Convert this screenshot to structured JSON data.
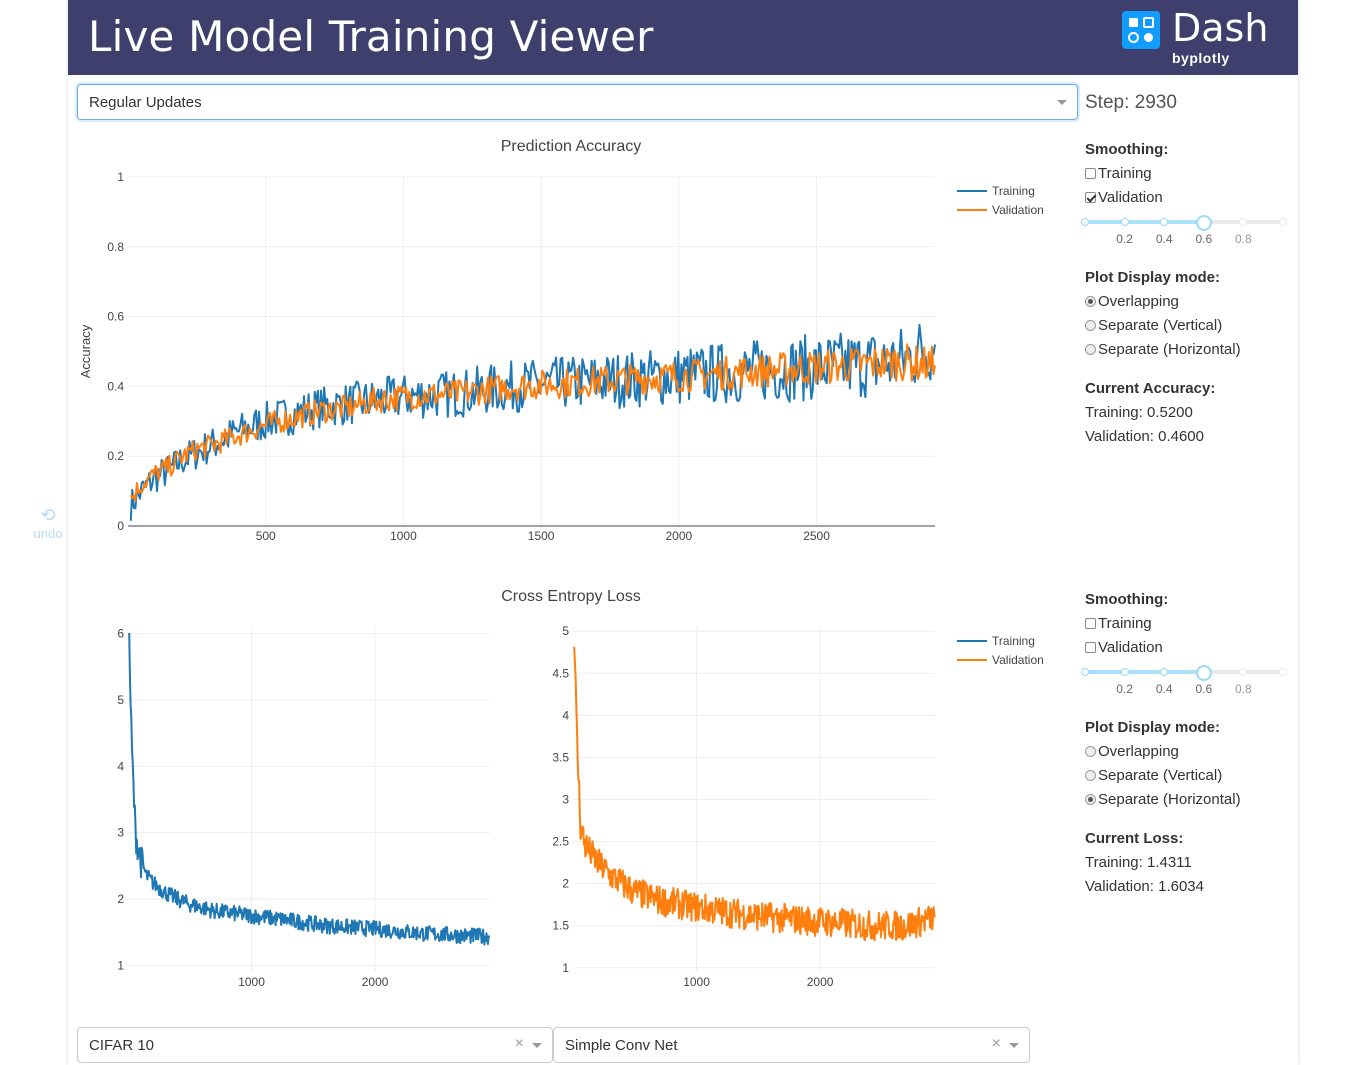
{
  "app": {
    "title": "Live Model Training Viewer",
    "logo_word": "Dash",
    "logo_sub": "byplotly"
  },
  "update_mode": {
    "value": "Regular Updates"
  },
  "step": {
    "text": "Step: 2930"
  },
  "undo": {
    "label": "undo"
  },
  "accuracy_panel": {
    "smoothing_label": "Smoothing:",
    "smooth_training": {
      "label": "Training",
      "checked": false
    },
    "smooth_validation": {
      "label": "Validation",
      "checked": true
    },
    "slider": {
      "value": 0.6,
      "marks": [
        "0.2",
        "0.4",
        "0.6",
        "0.8"
      ]
    },
    "display_label": "Plot Display mode:",
    "modes": [
      {
        "label": "Overlapping",
        "selected": true
      },
      {
        "label": "Separate (Vertical)",
        "selected": false
      },
      {
        "label": "Separate (Horizontal)",
        "selected": false
      }
    ],
    "current_label": "Current Accuracy:",
    "current_training": "Training: 0.5200",
    "current_validation": "Validation: 0.4600"
  },
  "loss_panel": {
    "smoothing_label": "Smoothing:",
    "smooth_training": {
      "label": "Training",
      "checked": false
    },
    "smooth_validation": {
      "label": "Validation",
      "checked": false
    },
    "slider": {
      "value": 0.6,
      "marks": [
        "0.2",
        "0.4",
        "0.6",
        "0.8"
      ]
    },
    "display_label": "Plot Display mode:",
    "modes": [
      {
        "label": "Overlapping",
        "selected": false
      },
      {
        "label": "Separate (Vertical)",
        "selected": false
      },
      {
        "label": "Separate (Horizontal)",
        "selected": true
      }
    ],
    "current_label": "Current Loss:",
    "current_training": "Training: 1.4311",
    "current_validation": "Validation: 1.6034"
  },
  "dataset_select": {
    "value": "CIFAR 10"
  },
  "model_select": {
    "value": "Simple Conv Net"
  },
  "colors": {
    "training": "#1f77b4",
    "validation": "#ff7f0e",
    "banner": "#3f3f6e"
  },
  "chart_data": [
    {
      "type": "line",
      "title": "Prediction Accuracy",
      "ylabel": "Accuracy",
      "xlabel": "",
      "xlim": [
        0,
        2930
      ],
      "ylim": [
        0,
        1
      ],
      "xticks": [
        500,
        1000,
        1500,
        2000,
        2500
      ],
      "yticks": [
        0,
        0.2,
        0.4,
        0.6,
        0.8,
        1
      ],
      "ytick_labels": [
        "0",
        "0.2",
        "0.4",
        "0.6",
        "0.8",
        "1"
      ],
      "legend": "top-right",
      "series": [
        {
          "name": "Training",
          "color": "#1f77b4",
          "x": [
            10,
            50,
            100,
            150,
            200,
            250,
            300,
            400,
            500,
            600,
            700,
            800,
            900,
            1000,
            1200,
            1400,
            1600,
            1800,
            2000,
            2200,
            2400,
            2600,
            2800,
            2930
          ],
          "values": [
            0.06,
            0.1,
            0.14,
            0.16,
            0.19,
            0.21,
            0.23,
            0.27,
            0.3,
            0.32,
            0.34,
            0.35,
            0.36,
            0.37,
            0.38,
            0.4,
            0.41,
            0.42,
            0.43,
            0.44,
            0.45,
            0.46,
            0.47,
            0.52
          ]
        },
        {
          "name": "Validation",
          "color": "#ff7f0e",
          "x": [
            10,
            50,
            100,
            150,
            200,
            250,
            300,
            400,
            500,
            600,
            700,
            800,
            900,
            1000,
            1200,
            1400,
            1600,
            1800,
            2000,
            2200,
            2400,
            2600,
            2800,
            2930
          ],
          "values": [
            0.08,
            0.12,
            0.15,
            0.17,
            0.2,
            0.22,
            0.23,
            0.26,
            0.29,
            0.31,
            0.33,
            0.34,
            0.36,
            0.37,
            0.38,
            0.4,
            0.41,
            0.42,
            0.43,
            0.44,
            0.45,
            0.46,
            0.47,
            0.46
          ]
        }
      ]
    },
    {
      "type": "line",
      "title": "Cross Entropy Loss",
      "ylabel": "",
      "xlabel": "",
      "xlim": [
        0,
        2930
      ],
      "ylim": [
        0.9,
        6.1
      ],
      "xticks": [
        1000,
        2000
      ],
      "yticks": [
        1,
        2,
        3,
        4,
        5,
        6
      ],
      "ytick_labels": [
        "1",
        "2",
        "3",
        "4",
        "5",
        "6"
      ],
      "series": [
        {
          "name": "Training",
          "color": "#1f77b4",
          "x": [
            10,
            30,
            60,
            100,
            150,
            200,
            300,
            400,
            500,
            700,
            1000,
            1300,
            1600,
            2000,
            2400,
            2700,
            2930
          ],
          "values": [
            5.85,
            4.3,
            3.0,
            2.6,
            2.35,
            2.25,
            2.1,
            2.0,
            1.92,
            1.82,
            1.75,
            1.68,
            1.6,
            1.55,
            1.48,
            1.45,
            1.43
          ]
        }
      ]
    },
    {
      "type": "line",
      "title": "",
      "ylabel": "",
      "xlabel": "",
      "xlim": [
        0,
        2930
      ],
      "ylim": [
        0.95,
        5.05
      ],
      "xticks": [
        1000,
        2000
      ],
      "yticks": [
        1,
        1.5,
        2,
        2.5,
        3,
        3.5,
        4,
        4.5,
        5
      ],
      "ytick_labels": [
        "1",
        "1.5",
        "2",
        "2.5",
        "3",
        "3.5",
        "4",
        "4.5",
        "5"
      ],
      "legend": "top-right",
      "series": [
        {
          "name": "Validation",
          "color": "#ff7f0e",
          "x": [
            10,
            30,
            60,
            100,
            150,
            200,
            300,
            400,
            500,
            700,
            1000,
            1300,
            1600,
            2000,
            2400,
            2700,
            2930
          ],
          "values": [
            5.0,
            3.8,
            2.7,
            2.45,
            2.35,
            2.25,
            2.1,
            2.0,
            1.9,
            1.8,
            1.72,
            1.65,
            1.6,
            1.55,
            1.5,
            1.5,
            1.6
          ]
        },
        {
          "name": "Training",
          "color": "#1f77b4",
          "x": [],
          "values": []
        }
      ]
    }
  ]
}
